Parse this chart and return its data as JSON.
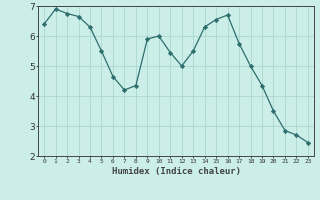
{
  "x": [
    0,
    1,
    2,
    3,
    4,
    5,
    6,
    7,
    8,
    9,
    10,
    11,
    12,
    13,
    14,
    15,
    16,
    17,
    18,
    19,
    20,
    21,
    22,
    23
  ],
  "y": [
    6.4,
    6.9,
    6.75,
    6.65,
    6.3,
    5.5,
    4.65,
    4.2,
    4.35,
    5.9,
    6.0,
    5.45,
    5.0,
    5.5,
    6.3,
    6.55,
    6.7,
    5.75,
    5.0,
    4.35,
    3.5,
    2.85,
    2.7,
    2.45
  ],
  "line_color": "#2d6e6e",
  "marker": "D",
  "marker_size": 2.2,
  "bg_color": "#cceee8",
  "grid_color": "#aad8d0",
  "axes_color": "#444444",
  "tick_color": "#333333",
  "xlabel": "Humidex (Indice chaleur)",
  "ylim": [
    2,
    7
  ],
  "xlim": [
    -0.5,
    23.5
  ],
  "yticks": [
    2,
    3,
    4,
    5,
    6,
    7
  ],
  "xticks": [
    0,
    1,
    2,
    3,
    4,
    5,
    6,
    7,
    8,
    9,
    10,
    11,
    12,
    13,
    14,
    15,
    16,
    17,
    18,
    19,
    20,
    21,
    22,
    23
  ]
}
